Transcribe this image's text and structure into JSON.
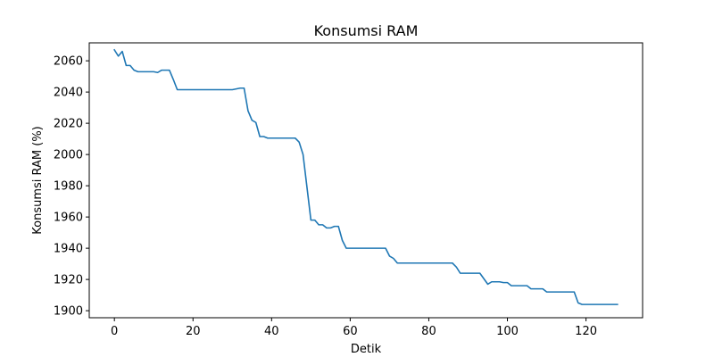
{
  "chart_data": {
    "type": "line",
    "title": "Konsumsi RAM",
    "xlabel": "Detik",
    "ylabel": "Konsumsi RAM (%)",
    "xlim": [
      -6.4,
      134.4
    ],
    "ylim": [
      1895.5,
      2071.5
    ],
    "xticks": [
      0,
      20,
      40,
      60,
      80,
      100,
      120
    ],
    "yticks": [
      1900,
      1920,
      1940,
      1960,
      1980,
      2000,
      2020,
      2040,
      2060
    ],
    "grid": false,
    "series": [
      {
        "color": "#1f77b4",
        "x": [
          0,
          1,
          2,
          3,
          4,
          5,
          6,
          7,
          8,
          9,
          10,
          11,
          12,
          13,
          14,
          15,
          16,
          17,
          18,
          19,
          20,
          21,
          22,
          23,
          24,
          25,
          26,
          27,
          28,
          29,
          30,
          31,
          32,
          33,
          34,
          35,
          36,
          37,
          38,
          39,
          40,
          41,
          42,
          43,
          44,
          45,
          46,
          47,
          48,
          49,
          50,
          51,
          52,
          53,
          54,
          55,
          56,
          57,
          58,
          59,
          60,
          61,
          62,
          63,
          64,
          65,
          66,
          67,
          68,
          69,
          70,
          71,
          72,
          73,
          74,
          75,
          76,
          77,
          78,
          79,
          80,
          81,
          82,
          83,
          84,
          85,
          86,
          87,
          88,
          89,
          90,
          91,
          92,
          93,
          94,
          95,
          96,
          97,
          98,
          99,
          100,
          101,
          102,
          103,
          104,
          105,
          106,
          107,
          108,
          109,
          110,
          111,
          112,
          113,
          114,
          115,
          116,
          117,
          118,
          119,
          120,
          121,
          122,
          123,
          124,
          125,
          126,
          127,
          128
        ],
        "y": [
          2067,
          2063,
          2066,
          2057,
          2057,
          2054,
          2053,
          2053,
          2053,
          2053,
          2053,
          2052.5,
          2054,
          2054,
          2054,
          2048,
          2041.5,
          2041.5,
          2041.5,
          2041.5,
          2041.5,
          2041.5,
          2041.5,
          2041.5,
          2041.5,
          2041.5,
          2041.5,
          2041.5,
          2041.5,
          2041.5,
          2041.5,
          2042,
          2042.5,
          2042.5,
          2028,
          2022,
          2020.5,
          2011.5,
          2011.5,
          2010.5,
          2010.5,
          2010.5,
          2010.5,
          2010.5,
          2010.5,
          2010.5,
          2010.5,
          2008,
          2000,
          1979,
          1958,
          1958,
          1955,
          1955,
          1953,
          1953,
          1954,
          1954,
          1945,
          1940,
          1940,
          1940,
          1940,
          1940,
          1940,
          1940,
          1940,
          1940,
          1940,
          1940,
          1935,
          1933.5,
          1930.5,
          1930.5,
          1930.5,
          1930.5,
          1930.5,
          1930.5,
          1930.5,
          1930.5,
          1930.5,
          1930.5,
          1930.5,
          1930.5,
          1930.5,
          1930.5,
          1930.5,
          1928,
          1924,
          1924,
          1924,
          1924,
          1924,
          1924,
          1920.5,
          1917,
          1918.5,
          1918.5,
          1918.5,
          1918,
          1918,
          1916,
          1916,
          1916,
          1916,
          1916,
          1914,
          1914,
          1914,
          1914,
          1912,
          1912,
          1912,
          1912,
          1912,
          1912,
          1912,
          1912,
          1905,
          1904,
          1904,
          1904,
          1904,
          1904,
          1904,
          1904,
          1904,
          1904,
          1904
        ]
      }
    ]
  }
}
